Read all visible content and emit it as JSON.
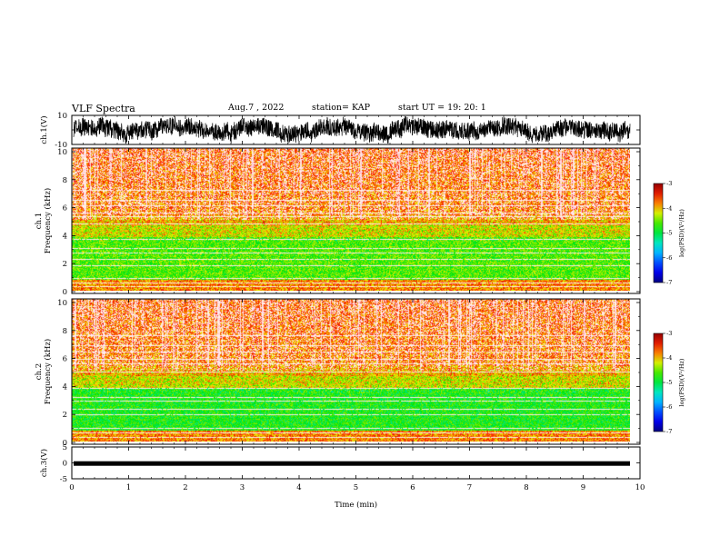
{
  "header": {
    "title": "VLF Spectra",
    "date": "Aug.7 , 2022",
    "station": "station= KAP",
    "start": "start UT = 19: 20: 1"
  },
  "chart_data": [
    {
      "type": "line",
      "panel": "waveform-ch1",
      "ylabel": "ch.1(V)",
      "ylim": [
        -10,
        10
      ],
      "yticks": [
        "10",
        "-10"
      ],
      "xlim": [
        0,
        10
      ],
      "trace_color": "#000000"
    },
    {
      "type": "heatmap",
      "panel": "spectrogram-ch1",
      "ylabel": "ch.1\nFrequency (kHz)",
      "ylim": [
        0,
        10
      ],
      "yticks": [
        "0",
        "2",
        "4",
        "6",
        "8",
        "10"
      ],
      "xlim": [
        0,
        9.8
      ],
      "colorbar": {
        "label": "log(PSD)(V²/Hz)",
        "range": [
          -7,
          -3
        ],
        "ticks": [
          "-3",
          "-4",
          "-5",
          "-6",
          "-7"
        ]
      }
    },
    {
      "type": "heatmap",
      "panel": "spectrogram-ch2",
      "ylabel": "ch.2\nFrequency (kHz)",
      "ylim": [
        0,
        10
      ],
      "yticks": [
        "0",
        "2",
        "4",
        "6",
        "8",
        "10"
      ],
      "xlim": [
        0,
        9.8
      ],
      "colorbar": {
        "label": "log(PSD)(V²/Hz)",
        "range": [
          -7,
          -3
        ],
        "ticks": [
          "-3",
          "-4",
          "-5",
          "-6",
          "-7"
        ]
      }
    },
    {
      "type": "line",
      "panel": "waveform-ch3",
      "ylabel": "ch.3(V)",
      "ylim": [
        -5,
        5
      ],
      "yticks": [
        "5",
        "0",
        "-5"
      ],
      "xlim": [
        0,
        10
      ],
      "trace_color": "#000000"
    }
  ],
  "xaxis": {
    "label": "Time (min)",
    "ticks": [
      "0",
      "1",
      "2",
      "3",
      "4",
      "5",
      "6",
      "7",
      "8",
      "9",
      "10"
    ]
  }
}
